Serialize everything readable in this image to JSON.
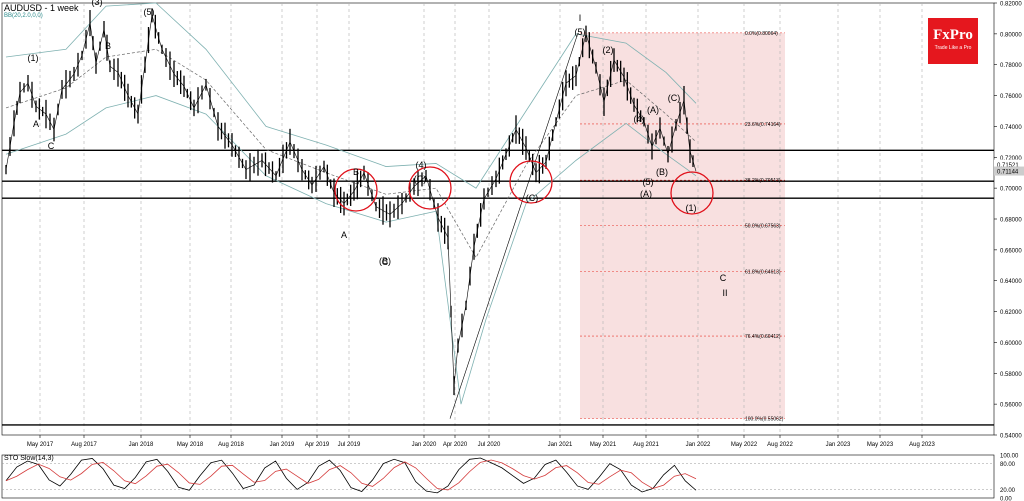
{
  "chart_data": {
    "type": "line",
    "symbol": "AUDUSD",
    "title": "AUDUSD - 1 week",
    "indicator": "BB(20,2.0,0,0)",
    "watermark": {
      "brand": "FxPro",
      "tagline": "Trade Like a Pro"
    },
    "ylim": [
      0.54,
      0.82
    ],
    "y_ticks": [
      "0.82000",
      "0.80000",
      "0.78000",
      "0.76000",
      "0.74000",
      "0.72000",
      "0.70000",
      "0.68000",
      "0.66000",
      "0.64000",
      "0.62000",
      "0.60000",
      "0.58000",
      "0.56000",
      "0.54000"
    ],
    "current_price": "0.71521",
    "current_price_2": "0.71144",
    "x_ticks": [
      "May 2017",
      "Aug 2017",
      "Jan 2018",
      "May 2018",
      "Aug 2018",
      "Jan 2019",
      "Apr 2019",
      "Jul 2019",
      "Jan 2020",
      "Apr 2020",
      "Jul 2020",
      "Jan 2021",
      "May 2021",
      "Aug 2021",
      "Jan 2022",
      "May 2022",
      "Aug 2022",
      "Jan 2023",
      "May 2023",
      "Aug 2023"
    ],
    "horizontal_levels": [
      0.7245,
      0.7045,
      0.6935,
      0.5465
    ],
    "fibonacci": [
      {
        "label": "0.0%(0.80064)",
        "value": 0.80064
      },
      {
        "label": "23.6%(0.74164)",
        "value": 0.74164
      },
      {
        "label": "38.2%(0.70513)",
        "value": 0.70513
      },
      {
        "label": "50.0%(0.67563)",
        "value": 0.67563
      },
      {
        "label": "61.8%(0.64613)",
        "value": 0.64613
      },
      {
        "label": "76.4%(0.60412)",
        "value": 0.60412
      },
      {
        "label": "100.0%(0.55062)",
        "value": 0.55062
      }
    ],
    "price_series": [
      {
        "t": 0,
        "v": 0.712
      },
      {
        "t": 8,
        "v": 0.742
      },
      {
        "t": 14,
        "v": 0.762
      },
      {
        "t": 22,
        "v": 0.768
      },
      {
        "t": 30,
        "v": 0.753
      },
      {
        "t": 40,
        "v": 0.748
      },
      {
        "t": 48,
        "v": 0.738
      },
      {
        "t": 56,
        "v": 0.764
      },
      {
        "t": 68,
        "v": 0.774
      },
      {
        "t": 76,
        "v": 0.786
      },
      {
        "t": 84,
        "v": 0.807
      },
      {
        "t": 90,
        "v": 0.781
      },
      {
        "t": 98,
        "v": 0.803
      },
      {
        "t": 104,
        "v": 0.779
      },
      {
        "t": 112,
        "v": 0.775
      },
      {
        "t": 122,
        "v": 0.76
      },
      {
        "t": 132,
        "v": 0.748
      },
      {
        "t": 146,
        "v": 0.812
      },
      {
        "t": 156,
        "v": 0.79
      },
      {
        "t": 168,
        "v": 0.774
      },
      {
        "t": 178,
        "v": 0.766
      },
      {
        "t": 188,
        "v": 0.752
      },
      {
        "t": 200,
        "v": 0.767
      },
      {
        "t": 212,
        "v": 0.74
      },
      {
        "t": 226,
        "v": 0.728
      },
      {
        "t": 240,
        "v": 0.712
      },
      {
        "t": 256,
        "v": 0.718
      },
      {
        "t": 270,
        "v": 0.708
      },
      {
        "t": 284,
        "v": 0.73
      },
      {
        "t": 296,
        "v": 0.712
      },
      {
        "t": 306,
        "v": 0.702
      },
      {
        "t": 318,
        "v": 0.714
      },
      {
        "t": 328,
        "v": 0.697
      },
      {
        "t": 338,
        "v": 0.69
      },
      {
        "t": 348,
        "v": 0.698
      },
      {
        "t": 358,
        "v": 0.71
      },
      {
        "t": 370,
        "v": 0.688
      },
      {
        "t": 384,
        "v": 0.683
      },
      {
        "t": 396,
        "v": 0.69
      },
      {
        "t": 408,
        "v": 0.701
      },
      {
        "t": 420,
        "v": 0.708
      },
      {
        "t": 432,
        "v": 0.681
      },
      {
        "t": 442,
        "v": 0.668
      },
      {
        "t": 448,
        "v": 0.572
      },
      {
        "t": 452,
        "v": 0.598
      },
      {
        "t": 460,
        "v": 0.624
      },
      {
        "t": 468,
        "v": 0.662
      },
      {
        "t": 478,
        "v": 0.693
      },
      {
        "t": 490,
        "v": 0.706
      },
      {
        "t": 500,
        "v": 0.722
      },
      {
        "t": 510,
        "v": 0.738
      },
      {
        "t": 520,
        "v": 0.726
      },
      {
        "t": 530,
        "v": 0.71
      },
      {
        "t": 540,
        "v": 0.717
      },
      {
        "t": 550,
        "v": 0.743
      },
      {
        "t": 560,
        "v": 0.768
      },
      {
        "t": 570,
        "v": 0.773
      },
      {
        "t": 580,
        "v": 0.8
      },
      {
        "t": 590,
        "v": 0.778
      },
      {
        "t": 598,
        "v": 0.756
      },
      {
        "t": 608,
        "v": 0.783
      },
      {
        "t": 618,
        "v": 0.772
      },
      {
        "t": 628,
        "v": 0.754
      },
      {
        "t": 638,
        "v": 0.743
      },
      {
        "t": 646,
        "v": 0.727
      },
      {
        "t": 654,
        "v": 0.739
      },
      {
        "t": 662,
        "v": 0.722
      },
      {
        "t": 670,
        "v": 0.741
      },
      {
        "t": 678,
        "v": 0.757
      },
      {
        "t": 684,
        "v": 0.724
      },
      {
        "t": 690,
        "v": 0.711
      }
    ],
    "bb_upper": [
      {
        "t": 0,
        "v": 0.785
      },
      {
        "t": 60,
        "v": 0.79
      },
      {
        "t": 100,
        "v": 0.818
      },
      {
        "t": 150,
        "v": 0.82
      },
      {
        "t": 200,
        "v": 0.79
      },
      {
        "t": 260,
        "v": 0.74
      },
      {
        "t": 320,
        "v": 0.728
      },
      {
        "t": 380,
        "v": 0.714
      },
      {
        "t": 430,
        "v": 0.716
      },
      {
        "t": 470,
        "v": 0.7
      },
      {
        "t": 520,
        "v": 0.75
      },
      {
        "t": 570,
        "v": 0.8
      },
      {
        "t": 620,
        "v": 0.794
      },
      {
        "t": 660,
        "v": 0.775
      },
      {
        "t": 690,
        "v": 0.755
      }
    ],
    "bb_mid": [
      {
        "t": 0,
        "v": 0.752
      },
      {
        "t": 60,
        "v": 0.765
      },
      {
        "t": 100,
        "v": 0.785
      },
      {
        "t": 150,
        "v": 0.79
      },
      {
        "t": 200,
        "v": 0.77
      },
      {
        "t": 260,
        "v": 0.725
      },
      {
        "t": 320,
        "v": 0.71
      },
      {
        "t": 380,
        "v": 0.696
      },
      {
        "t": 430,
        "v": 0.7
      },
      {
        "t": 470,
        "v": 0.655
      },
      {
        "t": 520,
        "v": 0.715
      },
      {
        "t": 570,
        "v": 0.76
      },
      {
        "t": 620,
        "v": 0.77
      },
      {
        "t": 660,
        "v": 0.748
      },
      {
        "t": 690,
        "v": 0.73
      }
    ],
    "bb_lower": [
      {
        "t": 0,
        "v": 0.722
      },
      {
        "t": 60,
        "v": 0.735
      },
      {
        "t": 100,
        "v": 0.752
      },
      {
        "t": 150,
        "v": 0.76
      },
      {
        "t": 200,
        "v": 0.748
      },
      {
        "t": 260,
        "v": 0.708
      },
      {
        "t": 320,
        "v": 0.69
      },
      {
        "t": 380,
        "v": 0.678
      },
      {
        "t": 430,
        "v": 0.685
      },
      {
        "t": 455,
        "v": 0.56
      },
      {
        "t": 480,
        "v": 0.615
      },
      {
        "t": 520,
        "v": 0.69
      },
      {
        "t": 570,
        "v": 0.718
      },
      {
        "t": 620,
        "v": 0.742
      },
      {
        "t": 660,
        "v": 0.722
      },
      {
        "t": 690,
        "v": 0.708
      }
    ],
    "wave_labels": [
      "(1)",
      "(3)",
      "(5)",
      "I",
      "(2)",
      "(C)",
      "(B)",
      "(A)",
      "(4)",
      "(5)",
      "A",
      "B",
      "C",
      "A",
      "B",
      "C",
      "(B)",
      "(4)",
      "(C)",
      "(C)",
      "(5)",
      "(A)",
      "(1)",
      "C",
      "II"
    ],
    "stochastic": {
      "label": "STO Slow(14,3)",
      "ylim": [
        0,
        100
      ],
      "y_ticks": [
        "100.00",
        "80.00",
        "20.00",
        "0.00"
      ],
      "current": "19.80",
      "k": [
        40,
        72,
        86,
        78,
        42,
        28,
        55,
        88,
        92,
        68,
        30,
        22,
        48,
        84,
        90,
        62,
        25,
        18,
        52,
        82,
        88,
        58,
        22,
        30,
        70,
        86,
        46,
        20,
        36,
        74,
        88,
        64,
        24,
        15,
        42,
        80,
        90,
        82,
        38,
        16,
        12,
        28,
        66,
        90,
        93,
        82,
        70,
        52,
        34,
        46,
        78,
        88,
        60,
        28,
        20,
        48,
        80,
        66,
        30,
        14,
        22,
        54,
        76,
        40,
        18
      ]
    }
  }
}
